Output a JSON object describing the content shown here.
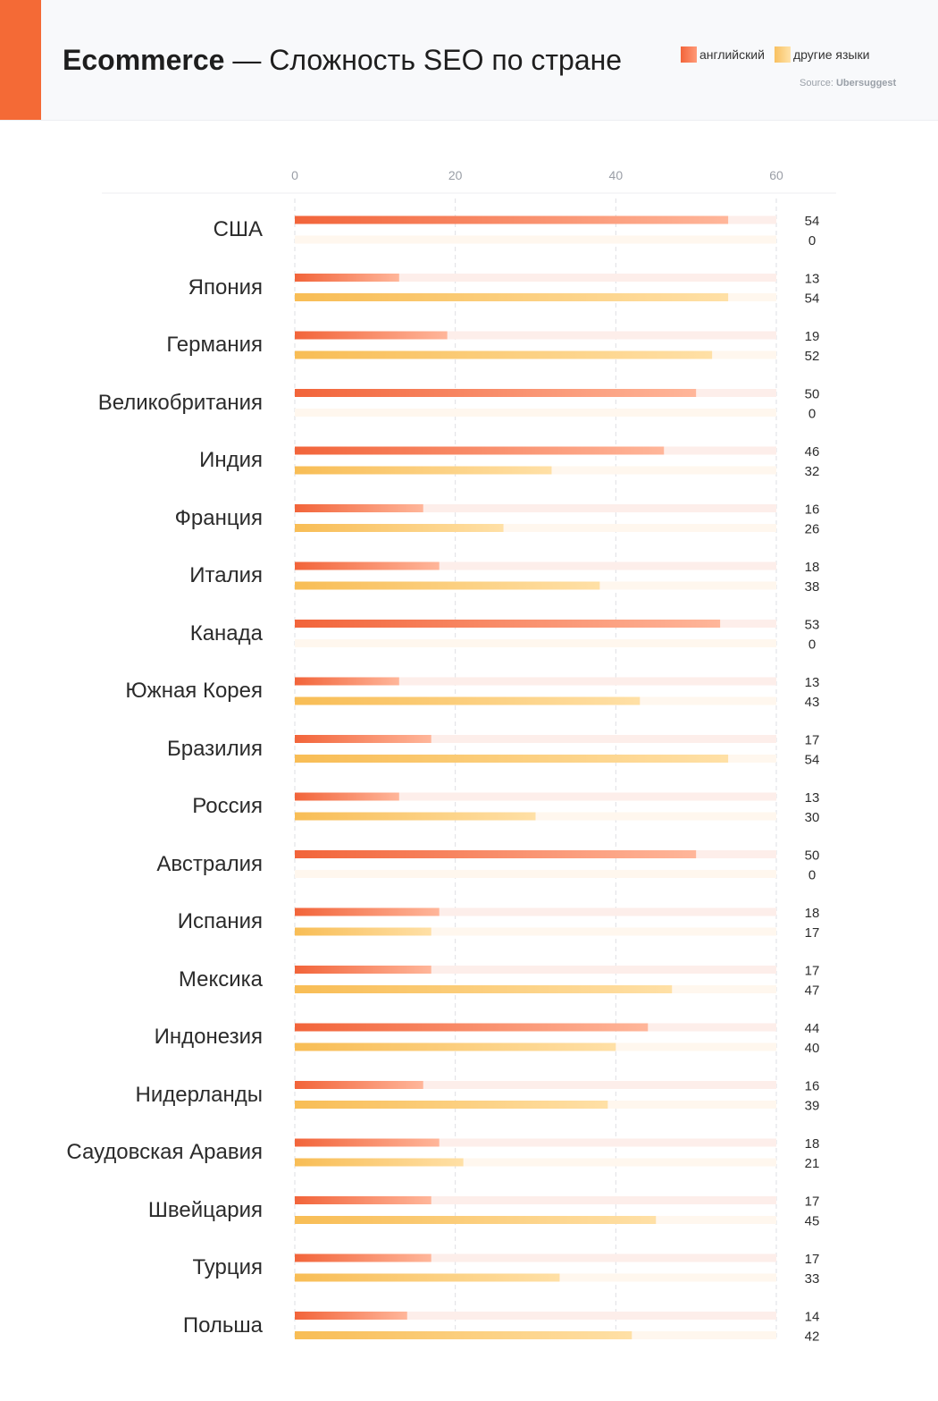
{
  "header": {
    "title_bold": "Ecommerce",
    "title_rest": " — Сложность SEO по стране",
    "source_prefix": "Source: ",
    "source_name": "Ubersuggest"
  },
  "colors": {
    "accent": "#f46a36",
    "english_start": "#f2643a",
    "english_end": "#ffb69a",
    "other_start": "#f8bd55",
    "other_end": "#ffe0a6",
    "english_track": "#fdeeea",
    "other_track": "#fff7ee"
  },
  "chart_data": {
    "type": "bar",
    "orientation": "horizontal",
    "title": "Ecommerce — Сложность SEO по стране",
    "xlim": [
      0,
      60
    ],
    "ticks": [
      0,
      20,
      40,
      60
    ],
    "grid": true,
    "legend_position": "top-right",
    "categories": [
      "США",
      "Япония",
      "Германия",
      "Великобритания",
      "Индия",
      "Франция",
      "Италия",
      "Канада",
      "Южная Корея",
      "Бразилия",
      "Россия",
      "Австралия",
      "Испания",
      "Мексика",
      "Индонезия",
      "Нидерланды",
      "Саудовская Аравия",
      "Швейцария",
      "Турция",
      "Польша"
    ],
    "series": [
      {
        "name": "английский",
        "values": [
          54,
          13,
          19,
          50,
          46,
          16,
          18,
          53,
          13,
          17,
          13,
          50,
          18,
          17,
          44,
          16,
          18,
          17,
          17,
          14
        ]
      },
      {
        "name": "другие языки",
        "values": [
          0,
          54,
          52,
          0,
          32,
          26,
          38,
          0,
          43,
          54,
          30,
          0,
          17,
          47,
          40,
          39,
          21,
          45,
          33,
          42
        ]
      }
    ]
  }
}
